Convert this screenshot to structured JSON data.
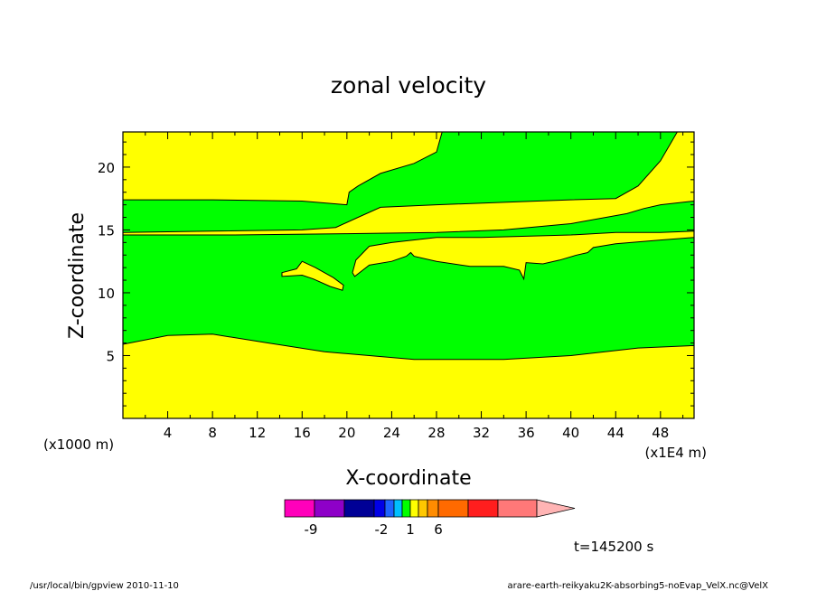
{
  "chart_data": {
    "type": "heatmap",
    "title": "zonal velocity",
    "xlabel": "X-coordinate",
    "ylabel": "Z-coordinate",
    "x_unit_left": "(x1000 m)",
    "x_unit_right": "(x1E4 m)",
    "xlim": [
      0,
      51
    ],
    "ylim": [
      0,
      22.8
    ],
    "x_ticks": [
      "4",
      "8",
      "12",
      "16",
      "20",
      "24",
      "28",
      "32",
      "36",
      "40",
      "44",
      "48"
    ],
    "y_ticks": [
      "5",
      "10",
      "15",
      "20"
    ],
    "fill_regions": [
      {
        "level": "1 to 2",
        "color": "#ffff00",
        "polygon": [
          [
            0,
            0
          ],
          [
            51,
            0
          ],
          [
            51,
            5.8
          ],
          [
            46,
            5.6
          ],
          [
            40,
            5
          ],
          [
            34,
            4.7
          ],
          [
            26,
            4.7
          ],
          [
            18,
            5.3
          ],
          [
            13,
            6
          ],
          [
            8,
            6.7
          ],
          [
            4,
            6.6
          ],
          [
            0,
            5.9
          ]
        ]
      },
      {
        "level": "1 to 2",
        "color": "#ffff00",
        "polygon": [
          [
            0,
            17.4
          ],
          [
            8,
            17.4
          ],
          [
            16,
            17.3
          ],
          [
            20,
            17
          ],
          [
            20.2,
            18
          ],
          [
            21,
            18.5
          ],
          [
            23,
            19.5
          ],
          [
            26,
            20.3
          ],
          [
            28,
            21.2
          ],
          [
            28.5,
            22.8
          ],
          [
            0,
            22.8
          ]
        ]
      },
      {
        "level": "1 to 2",
        "color": "#ffff00",
        "polygon": [
          [
            0,
            14.8
          ],
          [
            8,
            14.9
          ],
          [
            16,
            15
          ],
          [
            19,
            15.2
          ],
          [
            21,
            16
          ],
          [
            23,
            16.8
          ],
          [
            28,
            17
          ],
          [
            34,
            17.2
          ],
          [
            40,
            17.4
          ],
          [
            44,
            17.5
          ],
          [
            46,
            18.5
          ],
          [
            48,
            20.5
          ],
          [
            49.5,
            22.8
          ],
          [
            51,
            22.8
          ],
          [
            51,
            17.3
          ],
          [
            48,
            17
          ],
          [
            46.5,
            16.7
          ],
          [
            45,
            16.3
          ],
          [
            40,
            15.5
          ],
          [
            34,
            15
          ],
          [
            28,
            14.8
          ],
          [
            20,
            14.7
          ],
          [
            10,
            14.6
          ],
          [
            0,
            14.6
          ]
        ]
      },
      {
        "level": "1 to 2",
        "color": "#ffff00",
        "polygon": [
          [
            14.2,
            11.6
          ],
          [
            15.5,
            11.9
          ],
          [
            16,
            12.5
          ],
          [
            17.2,
            12
          ],
          [
            18.8,
            11.2
          ],
          [
            19.7,
            10.6
          ],
          [
            19.6,
            10.2
          ],
          [
            18.5,
            10.5
          ],
          [
            17,
            11.1
          ],
          [
            16,
            11.4
          ],
          [
            14.2,
            11.3
          ]
        ]
      },
      {
        "level": "1 to 2",
        "color": "#ffff00",
        "polygon": [
          [
            20.5,
            11.6
          ],
          [
            20.8,
            12.6
          ],
          [
            22,
            13.7
          ],
          [
            24,
            14
          ],
          [
            28,
            14.4
          ],
          [
            32,
            14.4
          ],
          [
            36,
            14.5
          ],
          [
            40,
            14.6
          ],
          [
            44,
            14.8
          ],
          [
            48,
            14.8
          ],
          [
            51,
            14.9
          ],
          [
            51,
            14.4
          ],
          [
            48,
            14.2
          ],
          [
            44,
            13.9
          ],
          [
            42,
            13.6
          ],
          [
            41.5,
            13.2
          ],
          [
            40.5,
            13
          ],
          [
            39,
            12.6
          ],
          [
            37.5,
            12.3
          ],
          [
            36,
            12.4
          ],
          [
            35.8,
            11.1
          ],
          [
            35.4,
            11.8
          ],
          [
            34,
            12.1
          ],
          [
            31,
            12.1
          ],
          [
            28,
            12.5
          ],
          [
            26,
            12.9
          ],
          [
            25.7,
            13.2
          ],
          [
            25.3,
            12.9
          ],
          [
            24,
            12.5
          ],
          [
            22,
            12.2
          ],
          [
            20.7,
            11.3
          ]
        ]
      }
    ],
    "background_region": {
      "level": "-1 to 1",
      "color": "#00ff00"
    },
    "colorbar": {
      "labels": [
        "-9",
        "-2",
        "1",
        "6"
      ],
      "colors": [
        "#ff00bb",
        "#8e00c8",
        "#000096",
        "#0000e6",
        "#1e64ff",
        "#00bfff",
        "#00ff00",
        "#ffff00",
        "#ffc800",
        "#ff8c00",
        "#ff6a00",
        "#ff1e1e",
        "#ff7878"
      ],
      "arrow_color": "#ffb4b4"
    },
    "grid": false,
    "legend": "bottom-center colorbar"
  },
  "time_label": "t=145200 s",
  "footer": {
    "left": "/usr/local/bin/gpview  2010-11-10",
    "right": "arare-earth-reikyaku2K-absorbing5-noEvap_VelX.nc@VelX"
  }
}
